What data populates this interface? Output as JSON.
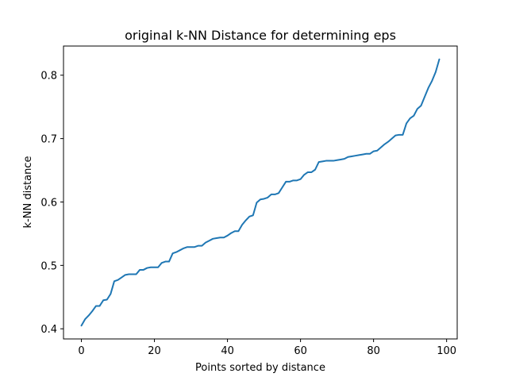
{
  "chart_data": {
    "type": "line",
    "title": "original k-NN Distance for determining eps",
    "xlabel": "Points sorted by distance",
    "ylabel": "k-NN distance",
    "xlim": [
      -4.9,
      102.9
    ],
    "ylim": [
      0.384,
      0.846
    ],
    "xticks": [
      0,
      20,
      40,
      60,
      80,
      100
    ],
    "yticks": [
      0.4,
      0.5,
      0.6,
      0.7,
      0.8
    ],
    "xtick_labels": [
      "0",
      "20",
      "40",
      "60",
      "80",
      "100"
    ],
    "ytick_labels": [
      "0.4",
      "0.5",
      "0.6",
      "0.7",
      "0.8"
    ],
    "grid": false,
    "legend": "none",
    "series": [
      {
        "color": "#1f77b4",
        "x": [
          0,
          1,
          2,
          3,
          4,
          5,
          6,
          7,
          8,
          9,
          10,
          11,
          12,
          13,
          14,
          15,
          16,
          17,
          18,
          19,
          20,
          21,
          22,
          23,
          24,
          25,
          26,
          27,
          28,
          29,
          30,
          31,
          32,
          33,
          34,
          35,
          36,
          37,
          38,
          39,
          40,
          41,
          42,
          43,
          44,
          45,
          46,
          47,
          48,
          49,
          50,
          51,
          52,
          53,
          54,
          55,
          56,
          57,
          58,
          59,
          60,
          61,
          62,
          63,
          64,
          65,
          66,
          67,
          68,
          69,
          70,
          71,
          72,
          73,
          74,
          75,
          76,
          77,
          78,
          79,
          80,
          81,
          82,
          83,
          84,
          85,
          86,
          87,
          88,
          89,
          90,
          91,
          92,
          93,
          94,
          95,
          96,
          97,
          98
        ],
        "y": [
          0.405,
          0.415,
          0.421,
          0.428,
          0.436,
          0.436,
          0.445,
          0.446,
          0.455,
          0.475,
          0.477,
          0.481,
          0.485,
          0.486,
          0.486,
          0.486,
          0.493,
          0.493,
          0.496,
          0.497,
          0.497,
          0.497,
          0.504,
          0.506,
          0.506,
          0.519,
          0.521,
          0.524,
          0.527,
          0.529,
          0.529,
          0.529,
          0.531,
          0.531,
          0.536,
          0.539,
          0.542,
          0.543,
          0.544,
          0.544,
          0.547,
          0.551,
          0.554,
          0.554,
          0.564,
          0.571,
          0.577,
          0.579,
          0.599,
          0.604,
          0.605,
          0.607,
          0.612,
          0.612,
          0.614,
          0.623,
          0.632,
          0.632,
          0.634,
          0.634,
          0.636,
          0.643,
          0.647,
          0.647,
          0.651,
          0.663,
          0.664,
          0.665,
          0.665,
          0.665,
          0.666,
          0.667,
          0.668,
          0.671,
          0.672,
          0.673,
          0.674,
          0.675,
          0.676,
          0.676,
          0.68,
          0.681,
          0.686,
          0.691,
          0.695,
          0.7,
          0.705,
          0.706,
          0.706,
          0.724,
          0.732,
          0.736,
          0.747,
          0.752,
          0.766,
          0.78,
          0.791,
          0.805,
          0.825
        ]
      }
    ]
  }
}
